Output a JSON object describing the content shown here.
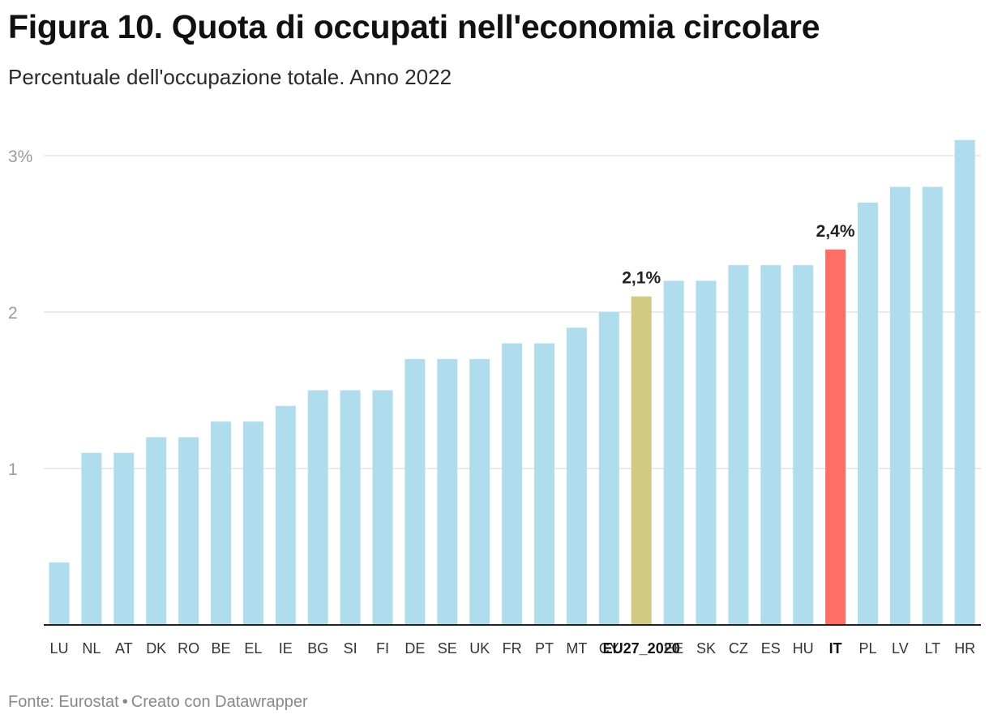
{
  "header": {
    "title": "Figura 10. Quota di occupati nell'economia circolare",
    "subtitle": "Percentuale dell'occupazione totale. Anno 2022"
  },
  "footer": {
    "source": "Fonte: Eurostat",
    "separator": "•",
    "credit": "Creato con Datawrapper"
  },
  "colors": {
    "default_bar": "#b0dded",
    "eu_bar": "#d2c983",
    "it_bar": "#ff6e64",
    "gridline": "#e3e3e3",
    "baseline": "#222222"
  },
  "chart_data": {
    "type": "bar",
    "title": "Figura 10. Quota di occupati nell'economia circolare",
    "subtitle": "Percentuale dell'occupazione totale. Anno 2022",
    "xlabel": "",
    "ylabel": "",
    "ylim": [
      0,
      3.1
    ],
    "yticks": [
      {
        "value": 1,
        "label": "1"
      },
      {
        "value": 2,
        "label": "2"
      },
      {
        "value": 3,
        "label": "3%"
      }
    ],
    "grid": true,
    "categories": [
      "LU",
      "NL",
      "AT",
      "DK",
      "RO",
      "BE",
      "EL",
      "IE",
      "BG",
      "SI",
      "FI",
      "DE",
      "SE",
      "UK",
      "FR",
      "PT",
      "MT",
      "CY",
      "EU27_2020",
      "EE",
      "SK",
      "CZ",
      "ES",
      "HU",
      "IT",
      "PL",
      "LV",
      "LT",
      "HR"
    ],
    "values": [
      0.4,
      1.1,
      1.1,
      1.2,
      1.2,
      1.3,
      1.3,
      1.4,
      1.5,
      1.5,
      1.5,
      1.7,
      1.7,
      1.7,
      1.8,
      1.8,
      1.9,
      2.0,
      2.1,
      2.2,
      2.2,
      2.3,
      2.3,
      2.3,
      2.4,
      2.7,
      2.8,
      2.8,
      3.1
    ],
    "highlights": {
      "EU27_2020": {
        "color": "eu_bar",
        "label": "2,1%"
      },
      "IT": {
        "color": "it_bar",
        "label": "2,4%"
      }
    }
  }
}
